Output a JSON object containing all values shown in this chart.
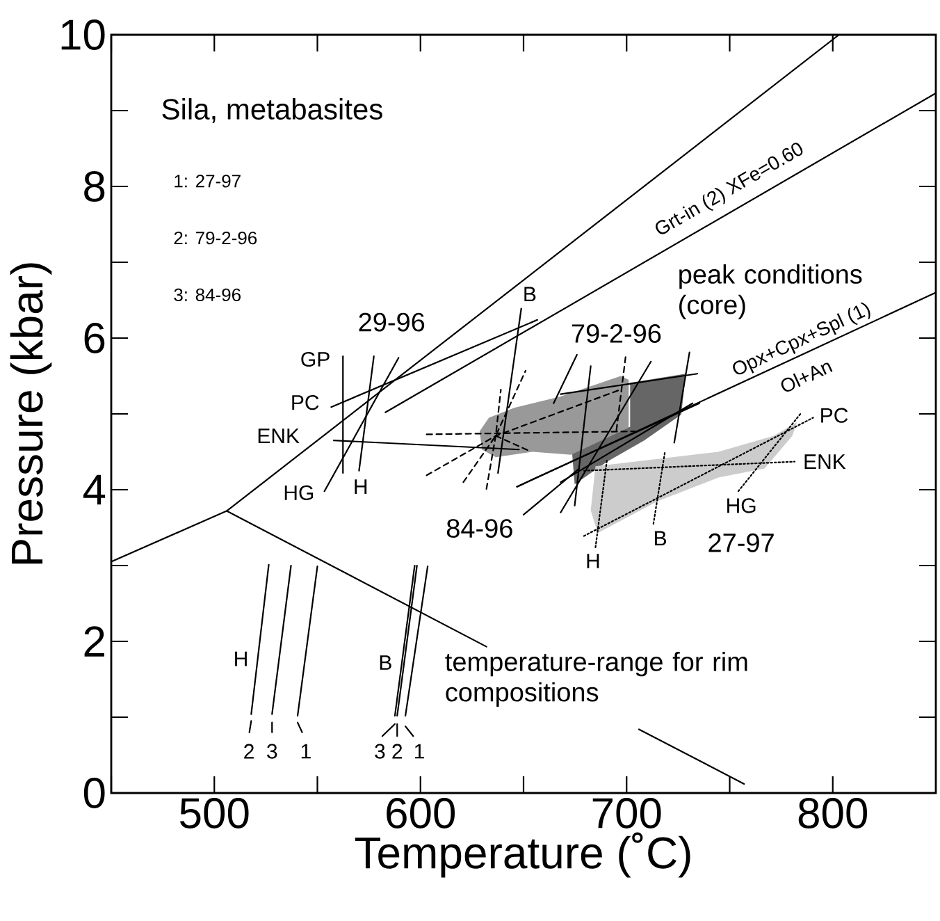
{
  "chart_data": {
    "type": "line",
    "title": "Sila, metabasites",
    "xlabel": "Temperature (˚C)",
    "ylabel": "Pressure (kbar)",
    "xlim": [
      450,
      850
    ],
    "ylim": [
      0,
      10
    ],
    "xticks": [
      {
        "value": 450,
        "label": null
      },
      500,
      {
        "value": 550,
        "label": null
      },
      600,
      {
        "value": 650,
        "label": null
      },
      700,
      {
        "value": 750,
        "label": null
      },
      800
    ],
    "yticks": [
      0,
      {
        "value": 1,
        "label": null
      },
      2,
      {
        "value": 3,
        "label": null
      },
      4,
      {
        "value": 5,
        "label": null
      },
      6,
      {
        "value": 7,
        "label": null
      },
      8,
      {
        "value": 9,
        "label": null
      },
      10
    ],
    "series": [
      {
        "type": "area",
        "color": "#999999",
        "x": [
          628.7,
          633.2,
          645.5,
          668,
          697.2,
          701,
          701,
          673,
          654.5,
          636.6,
          629.8
        ],
        "values": [
          4.77,
          4.95,
          5.08,
          5.23,
          5.5,
          5.45,
          4.82,
          4.46,
          4.5,
          4.43,
          4.53
        ]
      },
      {
        "type": "area",
        "color": "#666666",
        "x": [
          701.7,
          728.7,
          726.5,
          708.5,
          690.5,
          674.8,
          673.6,
          701.7
        ],
        "values": [
          5.41,
          5.53,
          4.99,
          4.65,
          4.37,
          4.07,
          4.47,
          4.83
        ]
      },
      {
        "type": "area",
        "color": "#cccccc",
        "x": [
          684.9,
          713,
          744.5,
          771.4,
          782.6,
          780.4,
          766.9,
          744.5,
          715.2,
          686,
          682.6
        ],
        "values": [
          4.31,
          4.4,
          4.5,
          4.71,
          4.89,
          4.71,
          4.28,
          4.16,
          3.85,
          3.43,
          3.73
        ]
      },
      {
        "color": "#000000",
        "line_style": "solid",
        "x": [
          450,
          506,
          803,
          700,
          506,
          632,
          670,
          706,
          757
        ],
        "values": [
          3.05,
          3.72,
          10,
          null,
          3.72,
          1.93,
          null,
          0.84,
          0.12
        ]
      },
      {
        "color": "#000000",
        "line_style": "solid",
        "x": [
          583,
          850
        ],
        "values": [
          5.02,
          9.23
        ]
      },
      {
        "color": "#000000",
        "line_style": "solid",
        "x": [
          647,
          850
        ],
        "values": [
          4.04,
          6.6
        ]
      },
      {
        "color": "#000000",
        "line_style": "solid",
        "x": [
          562.4,
          562.4
        ],
        "values": [
          5.76,
          4.22
        ]
      },
      {
        "color": "#000000",
        "line_style": "solid",
        "x": [
          577.4,
          570.2
        ],
        "values": [
          5.76,
          4.25
        ]
      },
      {
        "color": "#000000",
        "line_style": "solid",
        "x": [
          589.4,
          553.4
        ],
        "values": [
          5.74,
          3.98
        ]
      },
      {
        "color": "#000000",
        "line_style": "solid",
        "x": [
          556.7,
          656.7
        ],
        "values": [
          5.09,
          6.24
        ]
      },
      {
        "color": "#000000",
        "line_style": "solid",
        "x": [
          557.9,
          647.8
        ],
        "values": [
          4.65,
          4.53
        ]
      },
      {
        "color": "#000000",
        "line_style": "solid",
        "x": [
          648.9,
          637.6
        ],
        "values": [
          6.39,
          4.22
        ]
      },
      {
        "color": "#000000",
        "line_style": "dashed",
        "x": [
          603,
          704
        ],
        "values": [
          4.73,
          4.77
        ]
      },
      {
        "color": "#000000",
        "line_style": "dashed",
        "x": [
          603,
          636.5,
          697
        ],
        "values": [
          4.19,
          4.71,
          5.32
        ]
      },
      {
        "color": "#000000",
        "line_style": "dashed",
        "x": [
          620.8,
          636.5,
          651
        ],
        "values": [
          4.1,
          4.71,
          5.57
        ]
      },
      {
        "color": "#000000",
        "line_style": "dashed",
        "x": [
          632,
          636.5,
          639
        ],
        "values": [
          4.01,
          4.71,
          5.32
        ]
      },
      {
        "color": "#000000",
        "line_style": "dashed",
        "x": [
          636.5,
          653
        ],
        "values": [
          4.71,
          4.51
        ]
      },
      {
        "color": "#000000",
        "line_style": "dashed",
        "x": [
          699.5,
          695
        ],
        "values": [
          5.75,
          4.77
        ]
      },
      {
        "color": "#000000",
        "line_style": "solid",
        "x": [
          682.6,
          674.8
        ],
        "values": [
          5.63,
          3.79
        ]
      },
      {
        "color": "#000000",
        "line_style": "solid",
        "x": [
          711.8,
          668
        ],
        "values": [
          5.69,
          3.7
        ]
      },
      {
        "color": "#000000",
        "line_style": "solid",
        "x": [
          730.5,
          723.1
        ],
        "values": [
          5.81,
          4.62
        ]
      },
      {
        "color": "#000000",
        "line_style": "solid",
        "x": [
          668,
          734.3
        ],
        "values": [
          5.26,
          5.53
        ]
      },
      {
        "color": "#000000",
        "line_style": "solid",
        "x": [
          675.9,
          664.6
        ],
        "values": [
          5.78,
          5.14
        ]
      },
      {
        "color": "#000000",
        "line_style": "solid",
        "x": [
          646.7,
          735.3
        ],
        "values": [
          4.04,
          5.14
        ]
      },
      {
        "color": "#000000",
        "line_style": "solid",
        "x": [
          668,
          732
        ],
        "values": [
          4.1,
          5.14
        ]
      },
      {
        "color": "#000000",
        "line_style": "solid",
        "x": [
          650,
          677
        ],
        "values": [
          3.67,
          4.28
        ]
      },
      {
        "color": "#000000",
        "line_style": "dotted",
        "x": [
          679.3,
          781.5
        ],
        "values": [
          4.25,
          4.37
        ]
      },
      {
        "color": "#000000",
        "line_style": "dotted",
        "x": [
          679.3,
          790.5
        ],
        "values": [
          3.39,
          4.95
        ]
      },
      {
        "color": "#000000",
        "line_style": "dotted",
        "x": [
          684.9,
          690.5
        ],
        "values": [
          3.24,
          4.4
        ]
      },
      {
        "color": "#000000",
        "line_style": "dotted",
        "x": [
          713,
          718.6
        ],
        "values": [
          3.55,
          4.5
        ]
      },
      {
        "color": "#000000",
        "line_style": "dotted",
        "x": [
          754.2,
          784.9
        ],
        "values": [
          3.98,
          5.02
        ]
      },
      {
        "color": "#000000",
        "line_style": "solid",
        "x": [
          526.4,
          517.9
        ],
        "values": [
          3.01,
          1.04
        ]
      },
      {
        "color": "#000000",
        "line_style": "solid",
        "x": [
          537.2,
          528
        ],
        "values": [
          3.0,
          1.04
        ]
      },
      {
        "color": "#000000",
        "line_style": "solid",
        "x": [
          550,
          540.4
        ],
        "values": [
          2.99,
          1.02
        ]
      },
      {
        "color": "#000000",
        "line_style": "solid",
        "x": [
          597.2,
          587.6
        ],
        "values": [
          3.0,
          1.02
        ]
      },
      {
        "color": "#000000",
        "line_style": "solid",
        "x": [
          598.3,
          588.7
        ],
        "values": [
          3.0,
          1.02
        ]
      },
      {
        "color": "#000000",
        "line_style": "solid",
        "x": [
          603.5,
          592.7
        ],
        "values": [
          2.99,
          1.02
        ]
      },
      {
        "color": "#000000",
        "line_style": "solid",
        "x": [
          517.9,
          517
        ],
        "values": [
          0.95,
          0.8
        ]
      },
      {
        "color": "#000000",
        "line_style": "solid",
        "x": [
          528,
          528
        ],
        "values": [
          0.93,
          0.8
        ]
      },
      {
        "color": "#000000",
        "line_style": "solid",
        "x": [
          540.4,
          542.6
        ],
        "values": [
          0.93,
          0.8
        ]
      },
      {
        "color": "#000000",
        "line_style": "solid",
        "x": [
          587.6,
          581.5
        ],
        "values": [
          0.91,
          0.75
        ]
      },
      {
        "color": "#000000",
        "line_style": "solid",
        "x": [
          588.7,
          588.7
        ],
        "values": [
          0.91,
          0.75
        ]
      },
      {
        "color": "#000000",
        "line_style": "solid",
        "x": [
          592.7,
          596.5
        ],
        "values": [
          0.88,
          0.75
        ]
      }
    ],
    "annotations": [
      "29-96",
      "GP",
      "PC",
      "ENK",
      "HG",
      "H",
      "B",
      "79-2-96",
      "84-96",
      "peak conditions (core)",
      "Grt-in (2) XFe=0.60",
      "Opx+Cpx+Spl (1)",
      "Ol+An",
      "PC",
      "ENK",
      "HG",
      "B",
      "H",
      "27-97",
      "H",
      "B",
      "2",
      "3",
      "1",
      "3",
      "2",
      "1",
      "temperature-range for rim compositions",
      "1: 27-97",
      "2: 79-2-96",
      "3: 84-96"
    ]
  }
}
